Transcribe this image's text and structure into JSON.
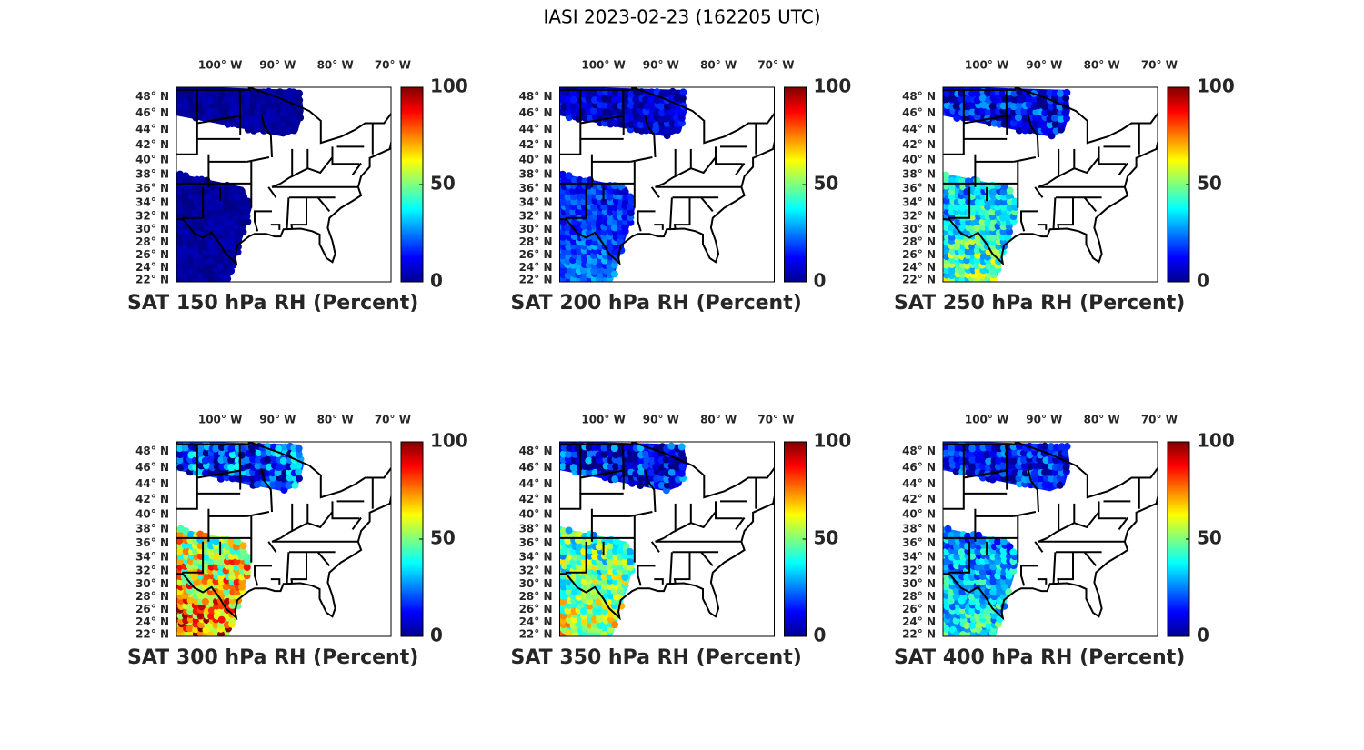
{
  "title": "IASI 2023-02-23 (162205 UTC)",
  "panels": [
    {
      "label": "SAT 150 hPa RH (Percent)"
    },
    {
      "label": "SAT 200 hPa RH (Percent)"
    },
    {
      "label": "SAT 250 hPa RH (Percent)"
    },
    {
      "label": "SAT 300 hPa RH (Percent)"
    },
    {
      "label": "SAT 350 hPa RH (Percent)"
    },
    {
      "label": "SAT 400 hPa RH (Percent)"
    }
  ],
  "lonlim": [
    -107.6,
    -70.3
  ],
  "latlim": [
    22,
    49.3
  ],
  "lon_ticks": [
    {
      "value": -100,
      "label": "100° W"
    },
    {
      "value": -90,
      "label": "90° W"
    },
    {
      "value": -80,
      "label": "80° W"
    },
    {
      "value": -70,
      "label": "70° W"
    }
  ],
  "lat_ticks": [
    {
      "value": 48,
      "label": "48° N"
    },
    {
      "value": 46,
      "label": "46° N"
    },
    {
      "value": 44,
      "label": "44° N"
    },
    {
      "value": 42,
      "label": "42° N"
    },
    {
      "value": 40,
      "label": "40° N"
    },
    {
      "value": 38,
      "label": "38° N"
    },
    {
      "value": 36,
      "label": "36° N"
    },
    {
      "value": 34,
      "label": "34° N"
    },
    {
      "value": 32,
      "label": "32° N"
    },
    {
      "value": 30,
      "label": "30° N"
    },
    {
      "value": 28,
      "label": "28° N"
    },
    {
      "value": 26,
      "label": "26° N"
    },
    {
      "value": 24,
      "label": "24° N"
    },
    {
      "value": 22,
      "label": "22° N"
    }
  ],
  "colorbar": {
    "colormap": "jet",
    "clim": [
      0,
      100
    ],
    "ticks": [
      0,
      50,
      100
    ]
  }
}
